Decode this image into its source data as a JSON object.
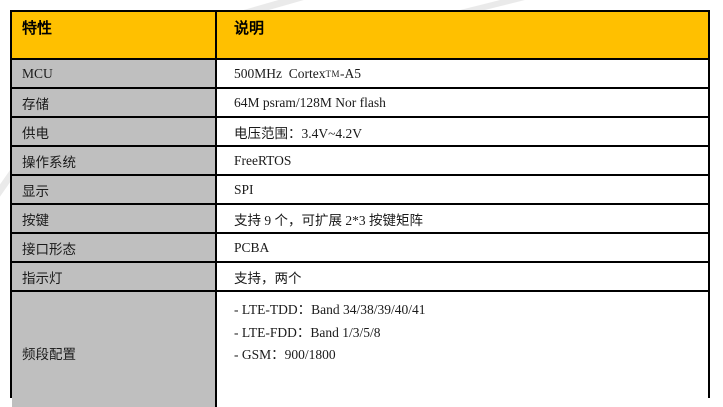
{
  "colors": {
    "header_bg": "#FFC000",
    "feature_column_bg": "#BFBFBF",
    "description_column_bg": "#FFFFFF",
    "border": "#000000",
    "header_text": "#000000",
    "body_text": "#1A1A1A",
    "watermark": "#D9D9D9"
  },
  "table": {
    "headers": [
      {
        "label": "特性"
      },
      {
        "label": "说明"
      }
    ],
    "rows": [
      {
        "feature": "MCU",
        "description_prefix": "500MHz  Cortex",
        "description_sup": "TM",
        "description_suffix": "-A5"
      },
      {
        "feature": "存储",
        "description": "64M psram/128M Nor flash"
      },
      {
        "feature": "供电",
        "description": "电压范围：3.4V~4.2V"
      },
      {
        "feature": "操作系统",
        "description": "FreeRTOS"
      },
      {
        "feature": "显示",
        "description": "SPI"
      },
      {
        "feature": "按键",
        "description": "支持 9 个，可扩展 2*3 按键矩阵"
      },
      {
        "feature": "接口形态",
        "description": "PCBA"
      },
      {
        "feature": "指示灯",
        "description": "支持，两个"
      },
      {
        "feature": "频段配置",
        "description_lines": [
          "- LTE-TDD：Band 34/38/39/40/41",
          "- LTE-FDD：Band 1/3/5/8",
          "- GSM：900/1800"
        ]
      }
    ]
  }
}
